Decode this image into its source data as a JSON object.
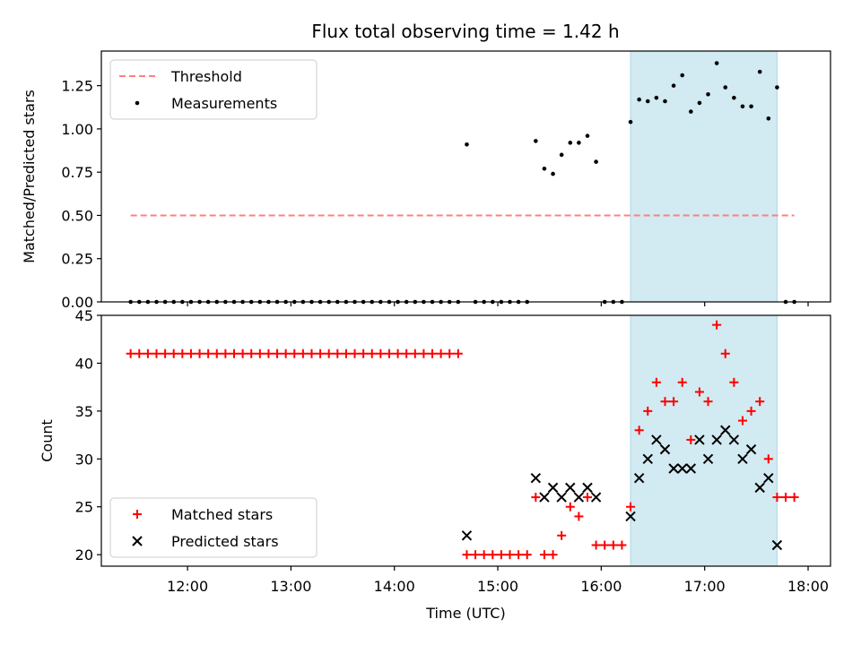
{
  "title": "Flux total observing time = 1.42 h",
  "colors": {
    "threshold": "#ff7f7f",
    "measurements": "#000000",
    "matched": "#ff0000",
    "predicted": "#000000",
    "highlight": "#add8e6"
  },
  "chart_data": [
    {
      "type": "scatter",
      "ylabel": "Matched/Predicted stars",
      "xlim": [
        "11:10",
        "18:13"
      ],
      "ylim": [
        0,
        1.45
      ],
      "yticks": [
        0.0,
        0.25,
        0.5,
        0.75,
        1.0,
        1.25
      ],
      "ytick_labels": [
        "0.00",
        "0.25",
        "0.50",
        "0.75",
        "1.00",
        "1.25"
      ],
      "highlight_span": [
        "16:17",
        "17:42"
      ],
      "legend": {
        "placement": "top-left",
        "entries": [
          "Threshold",
          "Measurements"
        ]
      },
      "threshold": {
        "name": "Threshold",
        "y": 0.5,
        "x": [
          "11:27",
          "17:52"
        ]
      },
      "series": [
        {
          "name": "Measurements",
          "points": [
            [
              "11:27",
              0
            ],
            [
              "11:32",
              0
            ],
            [
              "11:37",
              0
            ],
            [
              "11:42",
              0
            ],
            [
              "11:47",
              0
            ],
            [
              "11:52",
              0
            ],
            [
              "11:57",
              0
            ],
            [
              "12:02",
              0
            ],
            [
              "12:07",
              0
            ],
            [
              "12:12",
              0
            ],
            [
              "12:17",
              0
            ],
            [
              "12:22",
              0
            ],
            [
              "12:27",
              0
            ],
            [
              "12:32",
              0
            ],
            [
              "12:37",
              0
            ],
            [
              "12:42",
              0
            ],
            [
              "12:47",
              0
            ],
            [
              "12:52",
              0
            ],
            [
              "12:57",
              0
            ],
            [
              "13:02",
              0
            ],
            [
              "13:07",
              0
            ],
            [
              "13:12",
              0
            ],
            [
              "13:17",
              0
            ],
            [
              "13:22",
              0
            ],
            [
              "13:27",
              0
            ],
            [
              "13:32",
              0
            ],
            [
              "13:37",
              0
            ],
            [
              "13:42",
              0
            ],
            [
              "13:47",
              0
            ],
            [
              "13:52",
              0
            ],
            [
              "13:57",
              0
            ],
            [
              "14:02",
              0
            ],
            [
              "14:07",
              0
            ],
            [
              "14:12",
              0
            ],
            [
              "14:17",
              0
            ],
            [
              "14:22",
              0
            ],
            [
              "14:27",
              0
            ],
            [
              "14:32",
              0
            ],
            [
              "14:37",
              0
            ],
            [
              "14:42",
              0.91
            ],
            [
              "14:47",
              0
            ],
            [
              "14:52",
              0
            ],
            [
              "14:57",
              0
            ],
            [
              "15:02",
              0
            ],
            [
              "15:07",
              0
            ],
            [
              "15:12",
              0
            ],
            [
              "15:17",
              0
            ],
            [
              "15:22",
              0.93
            ],
            [
              "15:27",
              0.77
            ],
            [
              "15:32",
              0.74
            ],
            [
              "15:37",
              0.85
            ],
            [
              "15:42",
              0.92
            ],
            [
              "15:47",
              0.92
            ],
            [
              "15:52",
              0.96
            ],
            [
              "15:57",
              0.81
            ],
            [
              "16:02",
              0
            ],
            [
              "16:07",
              0
            ],
            [
              "16:12",
              0
            ],
            [
              "16:17",
              1.04
            ],
            [
              "16:22",
              1.17
            ],
            [
              "16:27",
              1.16
            ],
            [
              "16:32",
              1.18
            ],
            [
              "16:37",
              1.16
            ],
            [
              "16:42",
              1.25
            ],
            [
              "16:47",
              1.31
            ],
            [
              "16:52",
              1.1
            ],
            [
              "16:57",
              1.15
            ],
            [
              "17:02",
              1.2
            ],
            [
              "17:07",
              1.38
            ],
            [
              "17:12",
              1.24
            ],
            [
              "17:17",
              1.18
            ],
            [
              "17:22",
              1.13
            ],
            [
              "17:27",
              1.13
            ],
            [
              "17:32",
              1.33
            ],
            [
              "17:37",
              1.06
            ],
            [
              "17:42",
              1.24
            ],
            [
              "17:47",
              0
            ],
            [
              "17:52",
              0
            ]
          ]
        }
      ]
    },
    {
      "type": "scatter",
      "ylabel": "Count",
      "xlabel": "Time (UTC)",
      "xlim": [
        "11:10",
        "18:13"
      ],
      "xticks": [
        "12:00",
        "13:00",
        "14:00",
        "15:00",
        "16:00",
        "17:00",
        "18:00"
      ],
      "ylim": [
        18.8,
        45
      ],
      "yticks": [
        20,
        25,
        30,
        35,
        40,
        45
      ],
      "ytick_labels": [
        "20",
        "25",
        "30",
        "35",
        "40",
        "45"
      ],
      "highlight_span": [
        "16:17",
        "17:42"
      ],
      "legend": {
        "placement": "bottom-left",
        "entries": [
          "Matched stars",
          "Predicted stars"
        ]
      },
      "series": [
        {
          "name": "Matched stars",
          "marker": "plus",
          "points": [
            [
              "11:27",
              41
            ],
            [
              "11:32",
              41
            ],
            [
              "11:37",
              41
            ],
            [
              "11:42",
              41
            ],
            [
              "11:47",
              41
            ],
            [
              "11:52",
              41
            ],
            [
              "11:57",
              41
            ],
            [
              "12:02",
              41
            ],
            [
              "12:07",
              41
            ],
            [
              "12:12",
              41
            ],
            [
              "12:17",
              41
            ],
            [
              "12:22",
              41
            ],
            [
              "12:27",
              41
            ],
            [
              "12:32",
              41
            ],
            [
              "12:37",
              41
            ],
            [
              "12:42",
              41
            ],
            [
              "12:47",
              41
            ],
            [
              "12:52",
              41
            ],
            [
              "12:57",
              41
            ],
            [
              "13:02",
              41
            ],
            [
              "13:07",
              41
            ],
            [
              "13:12",
              41
            ],
            [
              "13:17",
              41
            ],
            [
              "13:22",
              41
            ],
            [
              "13:27",
              41
            ],
            [
              "13:32",
              41
            ],
            [
              "13:37",
              41
            ],
            [
              "13:42",
              41
            ],
            [
              "13:47",
              41
            ],
            [
              "13:52",
              41
            ],
            [
              "13:57",
              41
            ],
            [
              "14:02",
              41
            ],
            [
              "14:07",
              41
            ],
            [
              "14:12",
              41
            ],
            [
              "14:17",
              41
            ],
            [
              "14:22",
              41
            ],
            [
              "14:27",
              41
            ],
            [
              "14:32",
              41
            ],
            [
              "14:37",
              41
            ],
            [
              "14:42",
              20
            ],
            [
              "14:47",
              20
            ],
            [
              "14:52",
              20
            ],
            [
              "14:57",
              20
            ],
            [
              "15:02",
              20
            ],
            [
              "15:07",
              20
            ],
            [
              "15:12",
              20
            ],
            [
              "15:17",
              20
            ],
            [
              "15:22",
              26
            ],
            [
              "15:27",
              20
            ],
            [
              "15:32",
              20
            ],
            [
              "15:37",
              22
            ],
            [
              "15:42",
              25
            ],
            [
              "15:47",
              24
            ],
            [
              "15:52",
              26
            ],
            [
              "15:57",
              21
            ],
            [
              "16:02",
              21
            ],
            [
              "16:07",
              21
            ],
            [
              "16:12",
              21
            ],
            [
              "16:17",
              25
            ],
            [
              "16:22",
              33
            ],
            [
              "16:27",
              35
            ],
            [
              "16:32",
              38
            ],
            [
              "16:37",
              36
            ],
            [
              "16:42",
              36
            ],
            [
              "16:47",
              38
            ],
            [
              "16:52",
              32
            ],
            [
              "16:57",
              37
            ],
            [
              "17:02",
              36
            ],
            [
              "17:07",
              44
            ],
            [
              "17:12",
              41
            ],
            [
              "17:17",
              38
            ],
            [
              "17:22",
              34
            ],
            [
              "17:27",
              35
            ],
            [
              "17:32",
              36
            ],
            [
              "17:37",
              30
            ],
            [
              "17:42",
              26
            ],
            [
              "17:47",
              26
            ],
            [
              "17:52",
              26
            ]
          ]
        },
        {
          "name": "Predicted stars",
          "marker": "x",
          "points": [
            [
              "14:42",
              22
            ],
            [
              "15:22",
              28
            ],
            [
              "15:27",
              26
            ],
            [
              "15:32",
              27
            ],
            [
              "15:37",
              26
            ],
            [
              "15:42",
              27
            ],
            [
              "15:47",
              26
            ],
            [
              "15:52",
              27
            ],
            [
              "15:57",
              26
            ],
            [
              "16:17",
              24
            ],
            [
              "16:22",
              28
            ],
            [
              "16:27",
              30
            ],
            [
              "16:32",
              32
            ],
            [
              "16:37",
              31
            ],
            [
              "16:42",
              29
            ],
            [
              "16:47",
              29
            ],
            [
              "16:52",
              29
            ],
            [
              "16:57",
              32
            ],
            [
              "17:02",
              30
            ],
            [
              "17:07",
              32
            ],
            [
              "17:12",
              33
            ],
            [
              "17:17",
              32
            ],
            [
              "17:22",
              30
            ],
            [
              "17:27",
              31
            ],
            [
              "17:32",
              27
            ],
            [
              "17:37",
              28
            ],
            [
              "17:42",
              21
            ]
          ]
        }
      ]
    }
  ]
}
